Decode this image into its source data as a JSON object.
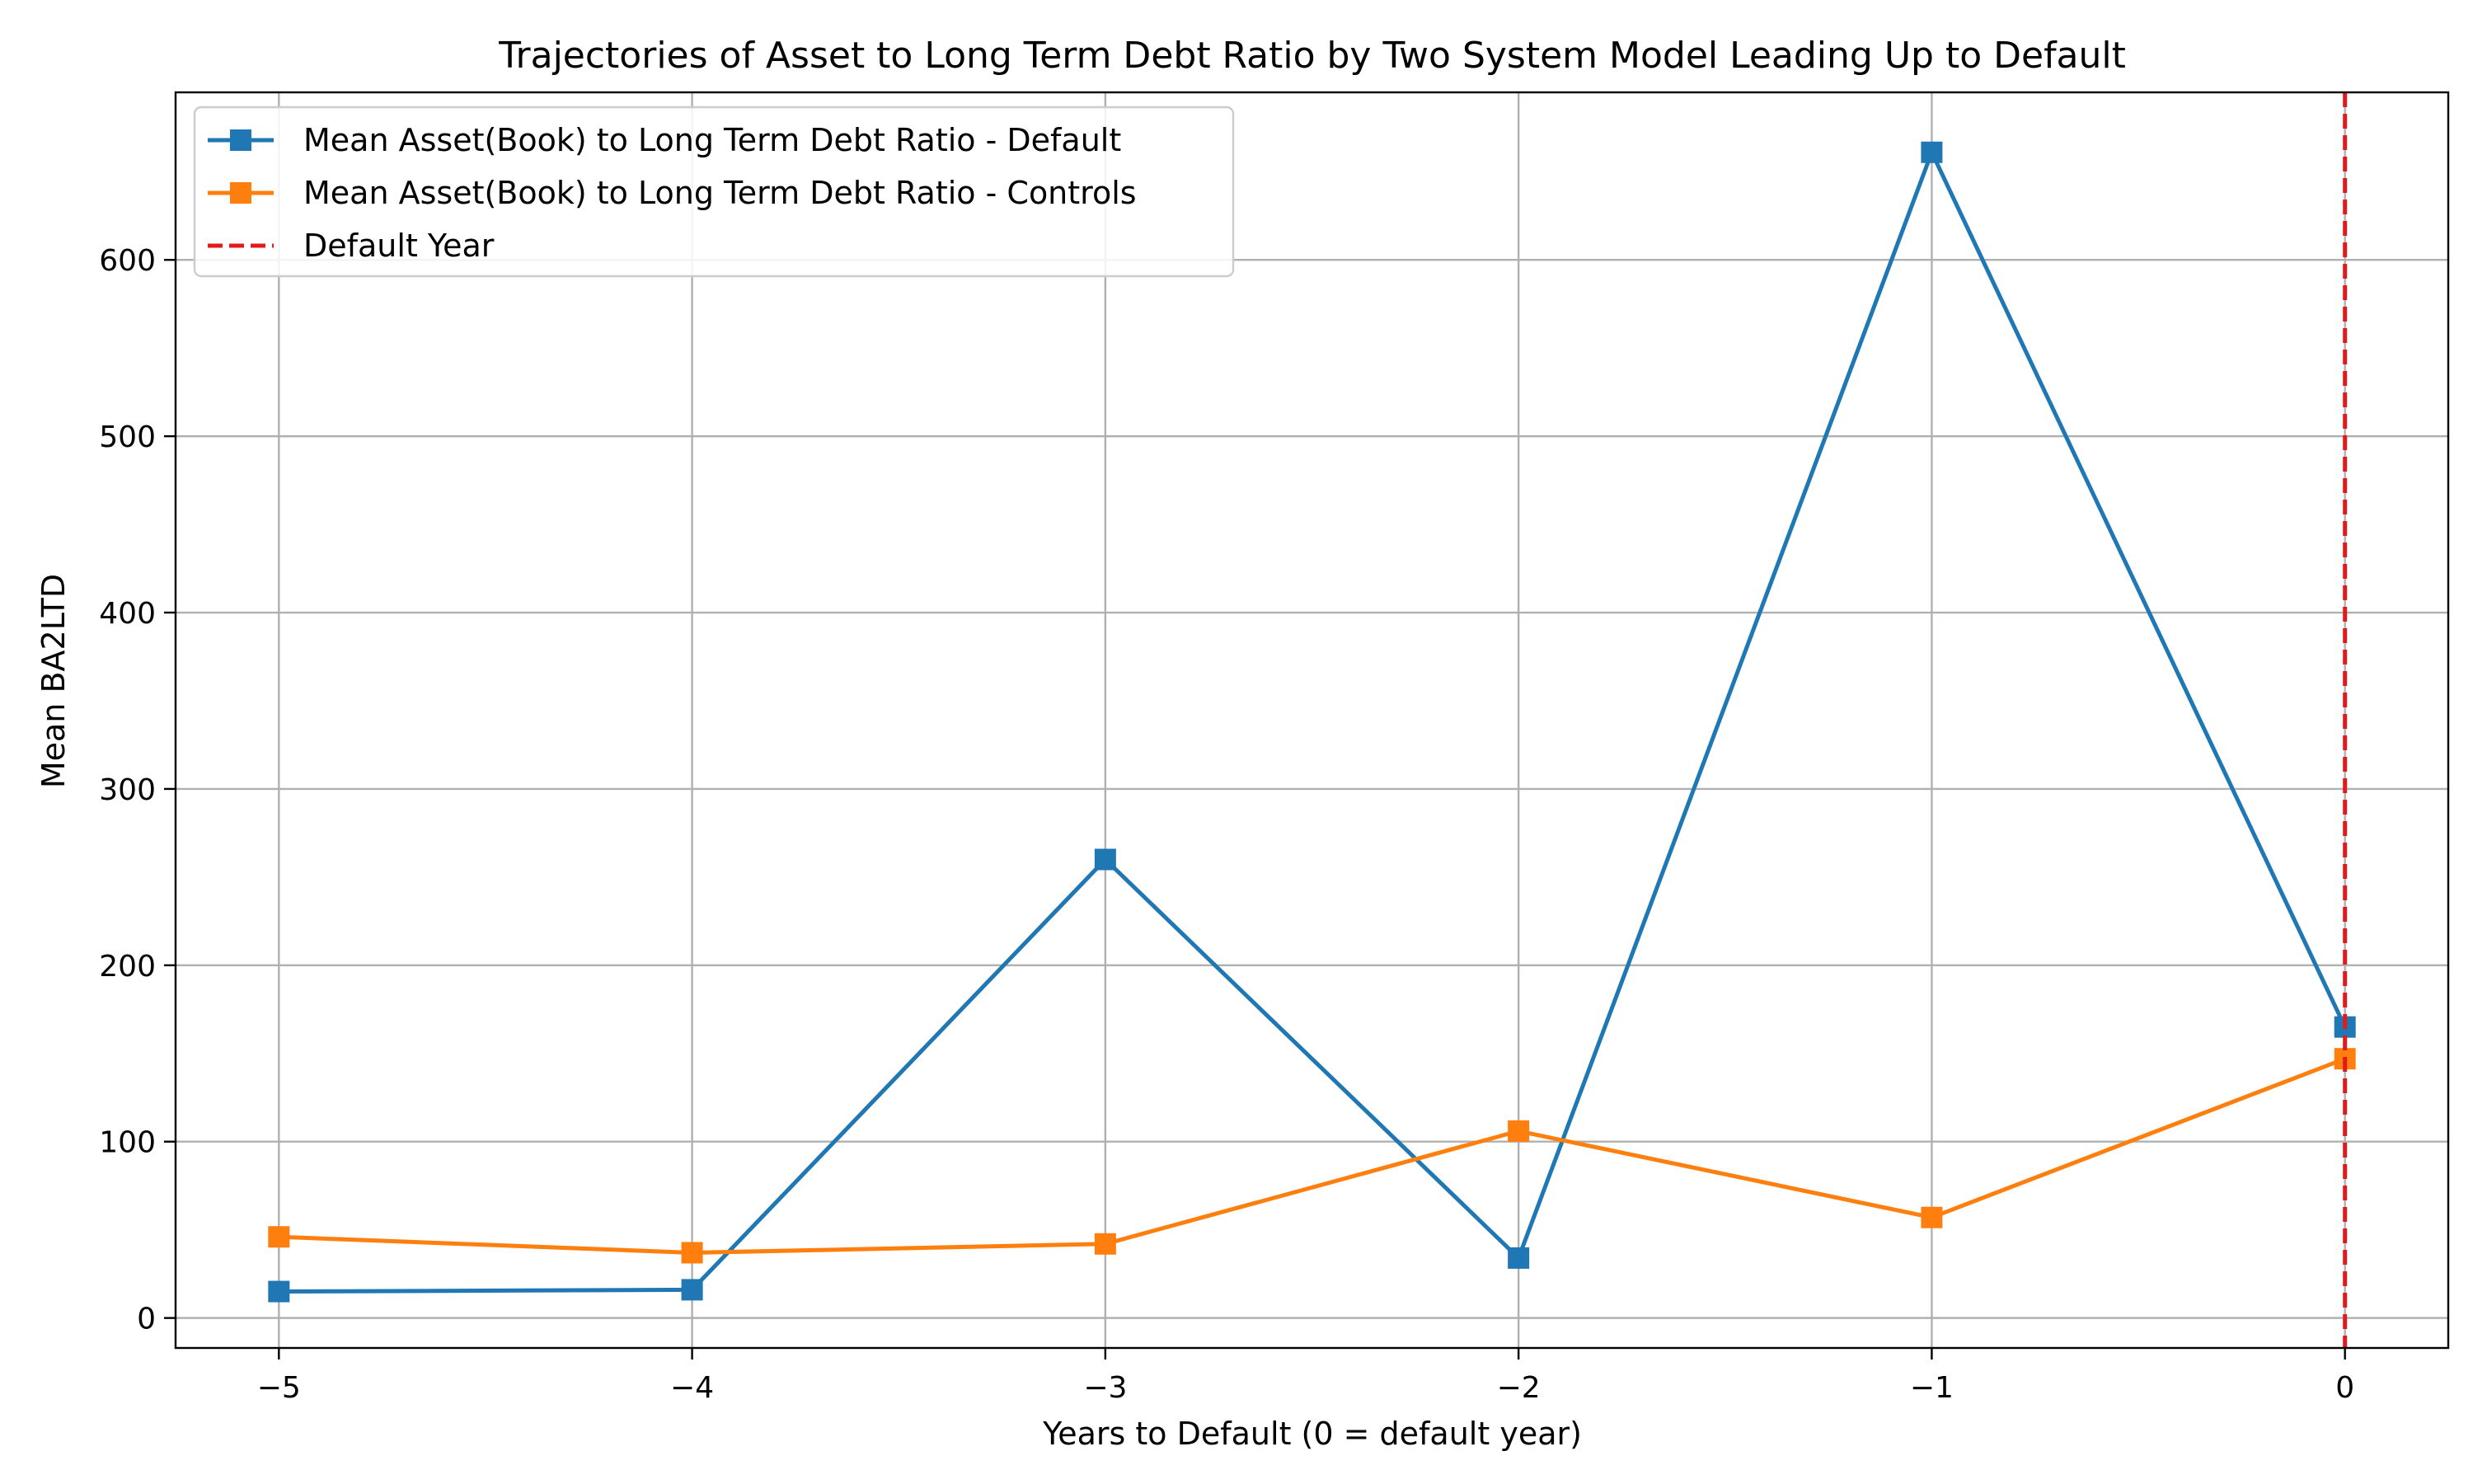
{
  "chart_data": {
    "type": "line",
    "title": "Trajectories of Asset to Long Term Debt Ratio by Two System Model Leading Up to Default",
    "xlabel": "Years to Default (0 = default year)",
    "ylabel": "Mean BA2LTD",
    "x": [
      -5,
      -4,
      -3,
      -2,
      -1,
      0
    ],
    "x_tick_labels": [
      "−5",
      "−4",
      "−3",
      "−2",
      "−1",
      "0"
    ],
    "xlim": [
      -5.25,
      0.25
    ],
    "y_ticks": [
      0,
      100,
      200,
      300,
      400,
      500,
      600
    ],
    "y_tick_labels": [
      "0",
      "100",
      "200",
      "300",
      "400",
      "500",
      "600"
    ],
    "ylim": [
      -17,
      695
    ],
    "grid": true,
    "legend_position": "upper-left",
    "series": [
      {
        "name": "Mean Asset(Book) to Long Term Debt Ratio - Default",
        "values": [
          15,
          16,
          260,
          34,
          661,
          165
        ],
        "color": "#1f77b4",
        "marker": "square"
      },
      {
        "name": "Mean Asset(Book) to Long Term Debt Ratio - Controls",
        "values": [
          46,
          37,
          42,
          106,
          57,
          147
        ],
        "color": "#ff7f0e",
        "marker": "square"
      }
    ],
    "reference_line": {
      "name": "Default Year",
      "x": 0,
      "color": "#e31a1c",
      "style": "dashed"
    }
  }
}
